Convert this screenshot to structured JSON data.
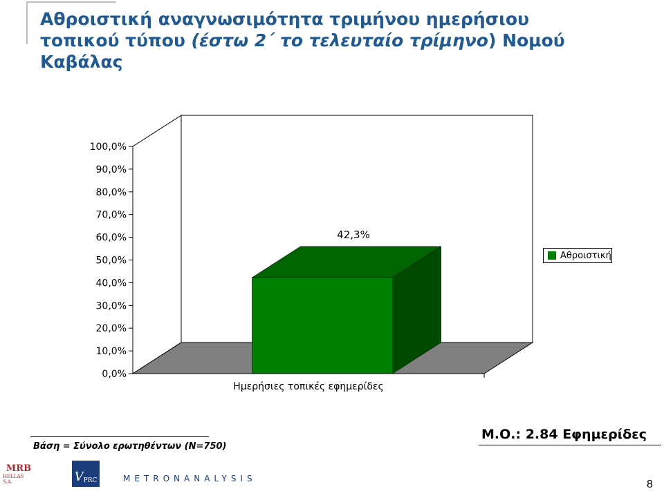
{
  "slide": {
    "title_line1": "Αθροιστική αναγνωσιμότητα τριμήνου ημερήσιου",
    "title_line2_start": "τοπικού τύπου ",
    "title_line2_italic": "(έστω 2΄ το τελευταίο τρίμηνο",
    "title_line2_end": ") Νομού",
    "title_line3": "Καβάλας",
    "base_note": "Βάση = Σύνολο ερωτηθέντων (Ν=750)",
    "mean_note": "Μ.Ο.: 2.84 Εφημερίδες",
    "page_number": "8",
    "logos": {
      "mrb_main": "MRB",
      "mrb_sub": "HELLAS S.A.",
      "vprc_v": "V",
      "vprc_rest": "PRC",
      "metron": "METRONANALYSIS"
    }
  },
  "chart_data": {
    "type": "bar",
    "categories": [
      "Ημερήσιες τοπικές εφημερίδες"
    ],
    "series": [
      {
        "name": "Αθροιστική",
        "values": [
          42.3
        ],
        "color": "#008000"
      }
    ],
    "data_labels": [
      "42,3%"
    ],
    "yticks": [
      "0,0%",
      "10,0%",
      "20,0%",
      "30,0%",
      "40,0%",
      "50,0%",
      "60,0%",
      "70,0%",
      "80,0%",
      "90,0%",
      "100,0%"
    ],
    "ylim": [
      0,
      100
    ],
    "legend": "right",
    "style": "3d",
    "floor_color": "#808080"
  }
}
